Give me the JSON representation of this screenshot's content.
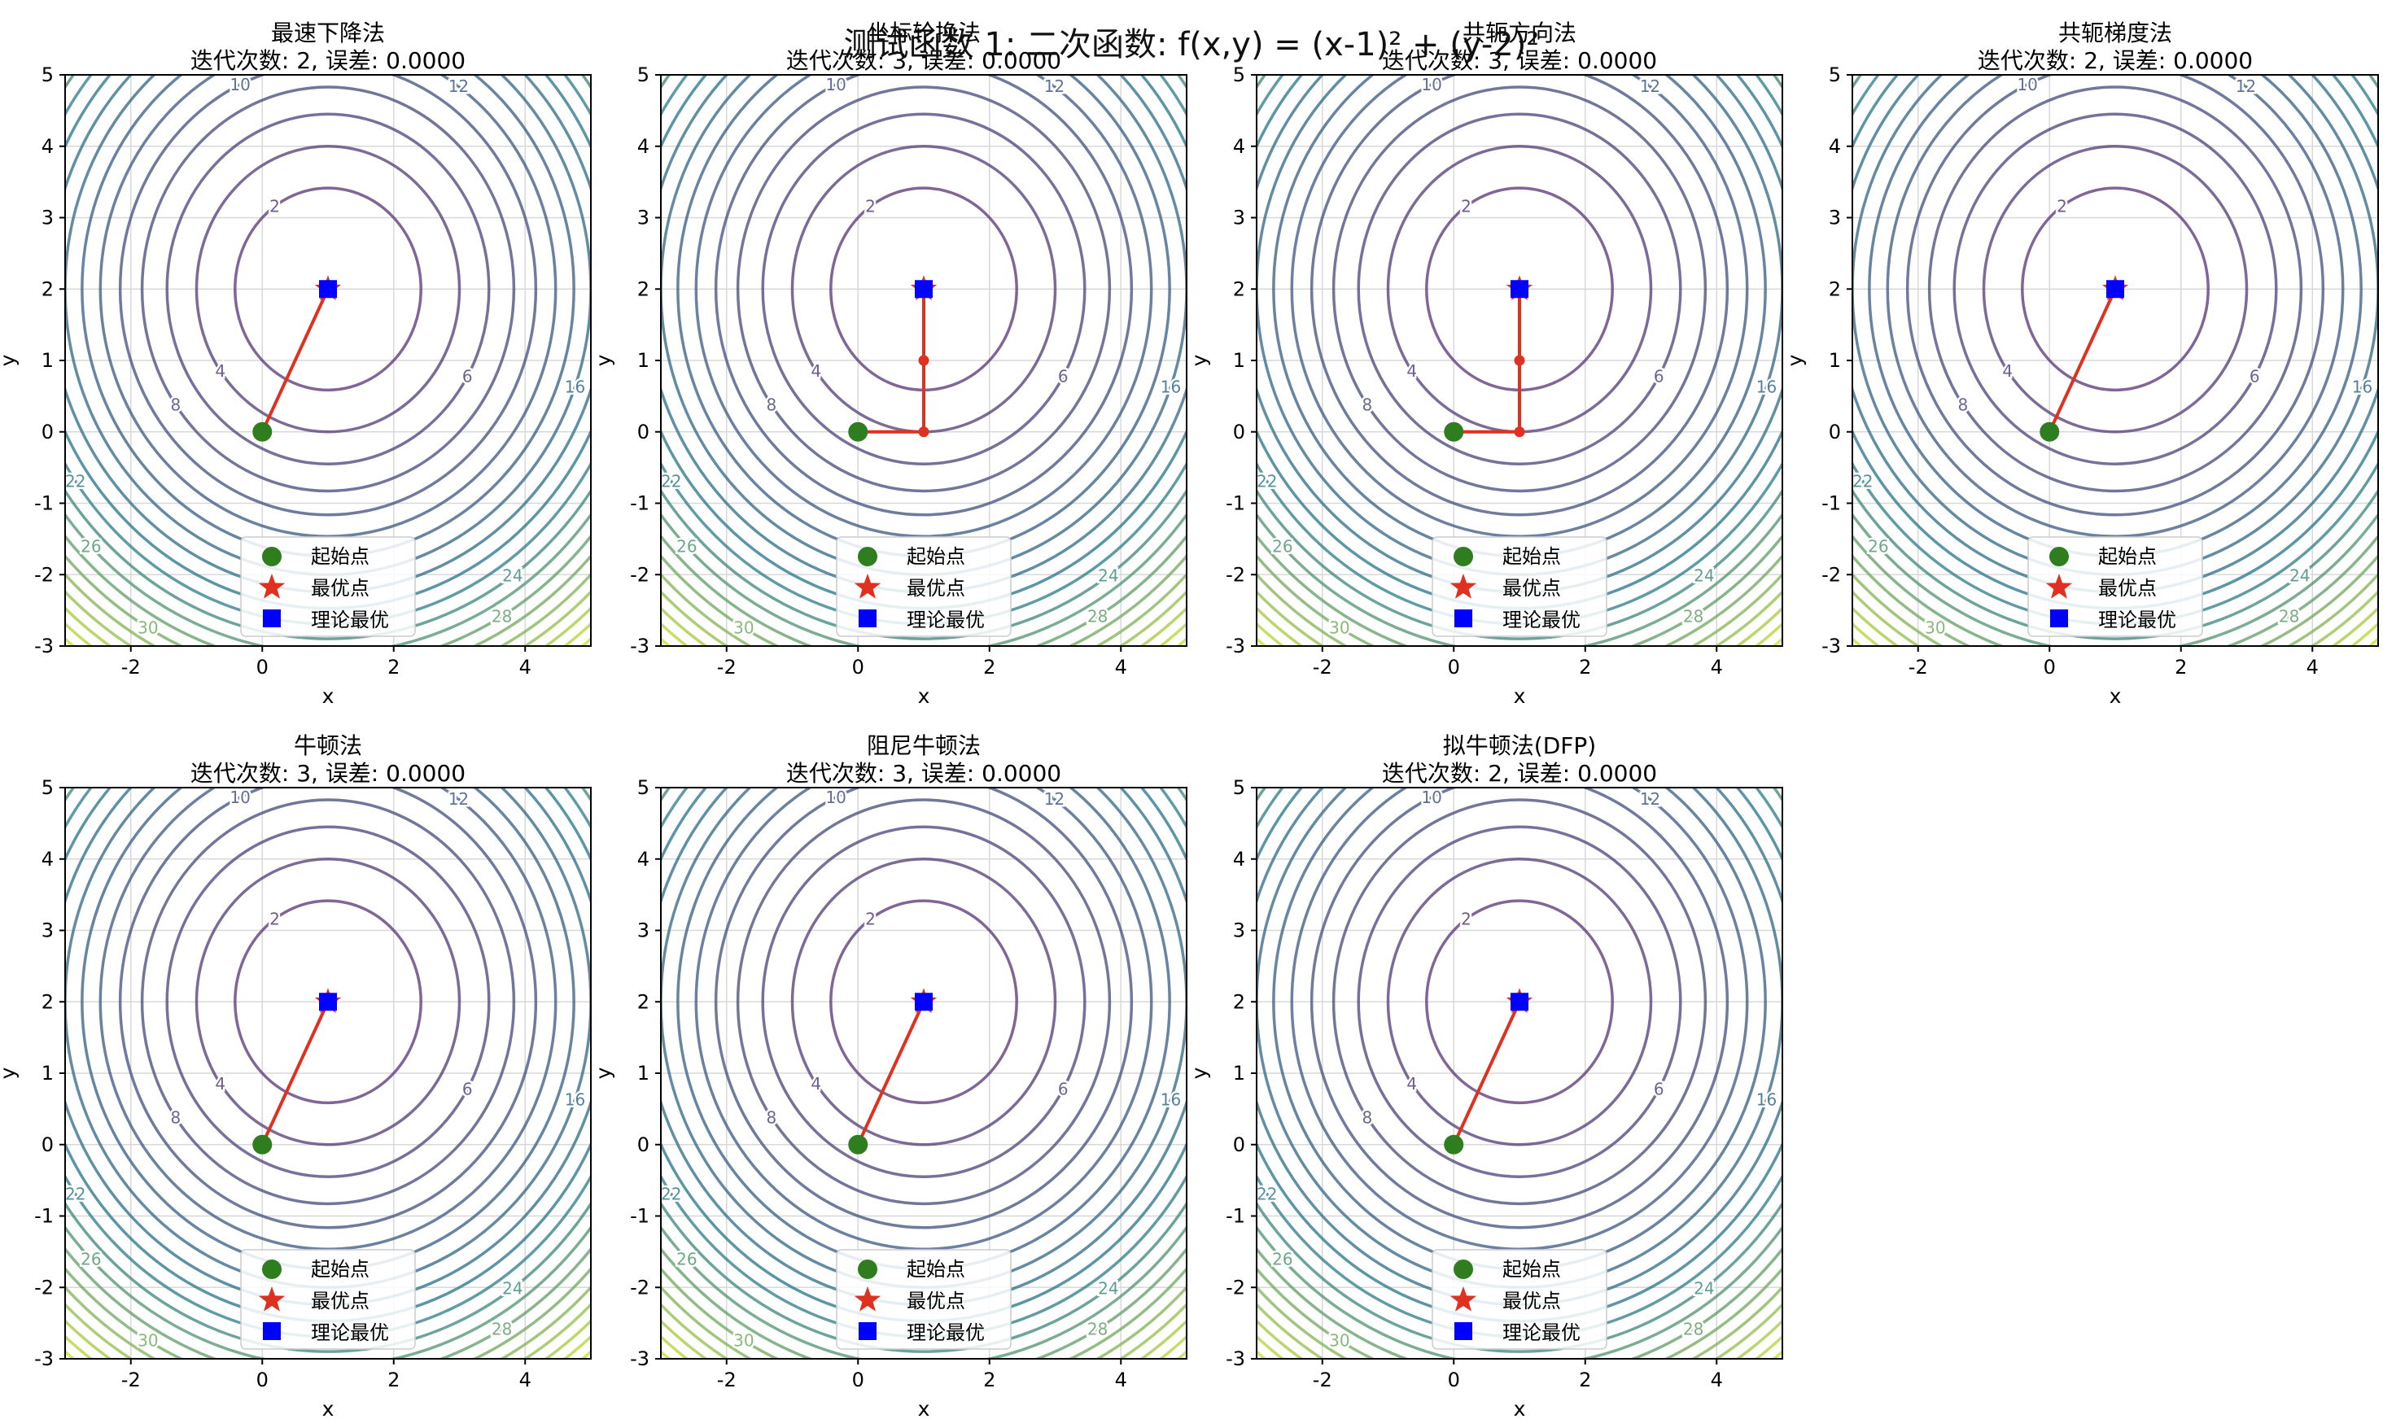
{
  "figure": {
    "suptitle": "测试函数 1: 二次函数: f(x,y) = (x-1)² + (y-2)²"
  },
  "legend": {
    "start_label": "起始点",
    "optimal_label": "最优点",
    "theory_label": "理论最优"
  },
  "colors": {
    "path": "#e03020",
    "start": "#2e7d1e",
    "optimal": "#e03020",
    "theory": "#0000ff",
    "contour_low": "#5c3a78",
    "contour_mid": "#2a7b8e",
    "contour_high": "#c8e030"
  },
  "chart_data": [
    {
      "type": "line",
      "title": "最速下降法",
      "subtitle": "迭代次数: 2, 误差: 0.0000",
      "xlabel": "x",
      "ylabel": "y",
      "xlim": [
        -3,
        5
      ],
      "ylim": [
        -3,
        5
      ],
      "xticks": [
        -2,
        0,
        2,
        4
      ],
      "yticks": [
        -3,
        -2,
        -1,
        0,
        1,
        2,
        3,
        4,
        5
      ],
      "grid": true,
      "legend_position": "bottom-center",
      "contour_levels": [
        2,
        4,
        6,
        8,
        10,
        12,
        14,
        16,
        18,
        20,
        22,
        24,
        26,
        28,
        30
      ],
      "path": [
        [
          0,
          0
        ],
        [
          1,
          2
        ]
      ],
      "start": [
        0,
        0
      ],
      "optimum": [
        1,
        2
      ],
      "theoretical_optimum": [
        1,
        2
      ]
    },
    {
      "type": "line",
      "title": "坐标轮换法",
      "subtitle": "迭代次数: 3, 误差: 0.0000",
      "xlabel": "x",
      "ylabel": "y",
      "xlim": [
        -3,
        5
      ],
      "ylim": [
        -3,
        5
      ],
      "xticks": [
        -2,
        0,
        2,
        4
      ],
      "yticks": [
        -3,
        -2,
        -1,
        0,
        1,
        2,
        3,
        4,
        5
      ],
      "grid": true,
      "legend_position": "bottom-center",
      "contour_levels": [
        2,
        4,
        6,
        8,
        10,
        12,
        14,
        16,
        18,
        20,
        22,
        24,
        26,
        28,
        30
      ],
      "path": [
        [
          0,
          0
        ],
        [
          1,
          0
        ],
        [
          1,
          1
        ],
        [
          1,
          2
        ]
      ],
      "start": [
        0,
        0
      ],
      "optimum": [
        1,
        2
      ],
      "theoretical_optimum": [
        1,
        2
      ]
    },
    {
      "type": "line",
      "title": "共轭方向法",
      "subtitle": "迭代次数: 3, 误差: 0.0000",
      "xlabel": "x",
      "ylabel": "y",
      "xlim": [
        -3,
        5
      ],
      "ylim": [
        -3,
        5
      ],
      "xticks": [
        -2,
        0,
        2,
        4
      ],
      "yticks": [
        -3,
        -2,
        -1,
        0,
        1,
        2,
        3,
        4,
        5
      ],
      "grid": true,
      "legend_position": "bottom-center",
      "contour_levels": [
        2,
        4,
        6,
        8,
        10,
        12,
        14,
        16,
        18,
        20,
        22,
        24,
        26,
        28,
        30
      ],
      "path": [
        [
          0,
          0
        ],
        [
          1,
          0
        ],
        [
          1,
          1
        ],
        [
          1,
          2
        ]
      ],
      "start": [
        0,
        0
      ],
      "optimum": [
        1,
        2
      ],
      "theoretical_optimum": [
        1,
        2
      ]
    },
    {
      "type": "line",
      "title": "共轭梯度法",
      "subtitle": "迭代次数: 2, 误差: 0.0000",
      "xlabel": "x",
      "ylabel": "y",
      "xlim": [
        -3,
        5
      ],
      "ylim": [
        -3,
        5
      ],
      "xticks": [
        -2,
        0,
        2,
        4
      ],
      "yticks": [
        -3,
        -2,
        -1,
        0,
        1,
        2,
        3,
        4,
        5
      ],
      "grid": true,
      "legend_position": "bottom-center",
      "contour_levels": [
        2,
        4,
        6,
        8,
        10,
        12,
        14,
        16,
        18,
        20,
        22,
        24,
        26,
        28,
        30
      ],
      "path": [
        [
          0,
          0
        ],
        [
          1,
          2
        ]
      ],
      "start": [
        0,
        0
      ],
      "optimum": [
        1,
        2
      ],
      "theoretical_optimum": [
        1,
        2
      ]
    },
    {
      "type": "line",
      "title": "牛顿法",
      "subtitle": "迭代次数: 3, 误差: 0.0000",
      "xlabel": "x",
      "ylabel": "y",
      "xlim": [
        -3,
        5
      ],
      "ylim": [
        -3,
        5
      ],
      "xticks": [
        -2,
        0,
        2,
        4
      ],
      "yticks": [
        -3,
        -2,
        -1,
        0,
        1,
        2,
        3,
        4,
        5
      ],
      "grid": true,
      "legend_position": "bottom-center",
      "contour_levels": [
        2,
        4,
        6,
        8,
        10,
        12,
        14,
        16,
        18,
        20,
        22,
        24,
        26,
        28,
        30
      ],
      "path": [
        [
          0,
          0
        ],
        [
          1,
          2
        ]
      ],
      "start": [
        0,
        0
      ],
      "optimum": [
        1,
        2
      ],
      "theoretical_optimum": [
        1,
        2
      ]
    },
    {
      "type": "line",
      "title": "阻尼牛顿法",
      "subtitle": "迭代次数: 3, 误差: 0.0000",
      "xlabel": "x",
      "ylabel": "y",
      "xlim": [
        -3,
        5
      ],
      "ylim": [
        -3,
        5
      ],
      "xticks": [
        -2,
        0,
        2,
        4
      ],
      "yticks": [
        -3,
        -2,
        -1,
        0,
        1,
        2,
        3,
        4,
        5
      ],
      "grid": true,
      "legend_position": "bottom-center",
      "contour_levels": [
        2,
        4,
        6,
        8,
        10,
        12,
        14,
        16,
        18,
        20,
        22,
        24,
        26,
        28,
        30
      ],
      "path": [
        [
          0,
          0
        ],
        [
          1,
          2
        ]
      ],
      "start": [
        0,
        0
      ],
      "optimum": [
        1,
        2
      ],
      "theoretical_optimum": [
        1,
        2
      ]
    },
    {
      "type": "line",
      "title": "拟牛顿法(DFP)",
      "subtitle": "迭代次数: 2, 误差: 0.0000",
      "xlabel": "x",
      "ylabel": "y",
      "xlim": [
        -3,
        5
      ],
      "ylim": [
        -3,
        5
      ],
      "xticks": [
        -2,
        0,
        2,
        4
      ],
      "yticks": [
        -3,
        -2,
        -1,
        0,
        1,
        2,
        3,
        4,
        5
      ],
      "grid": true,
      "legend_position": "bottom-center",
      "contour_levels": [
        2,
        4,
        6,
        8,
        10,
        12,
        14,
        16,
        18,
        20,
        22,
        24,
        26,
        28,
        30
      ],
      "path": [
        [
          0,
          0
        ],
        [
          1,
          2
        ]
      ],
      "start": [
        0,
        0
      ],
      "optimum": [
        1,
        2
      ],
      "theoretical_optimum": [
        1,
        2
      ]
    }
  ]
}
